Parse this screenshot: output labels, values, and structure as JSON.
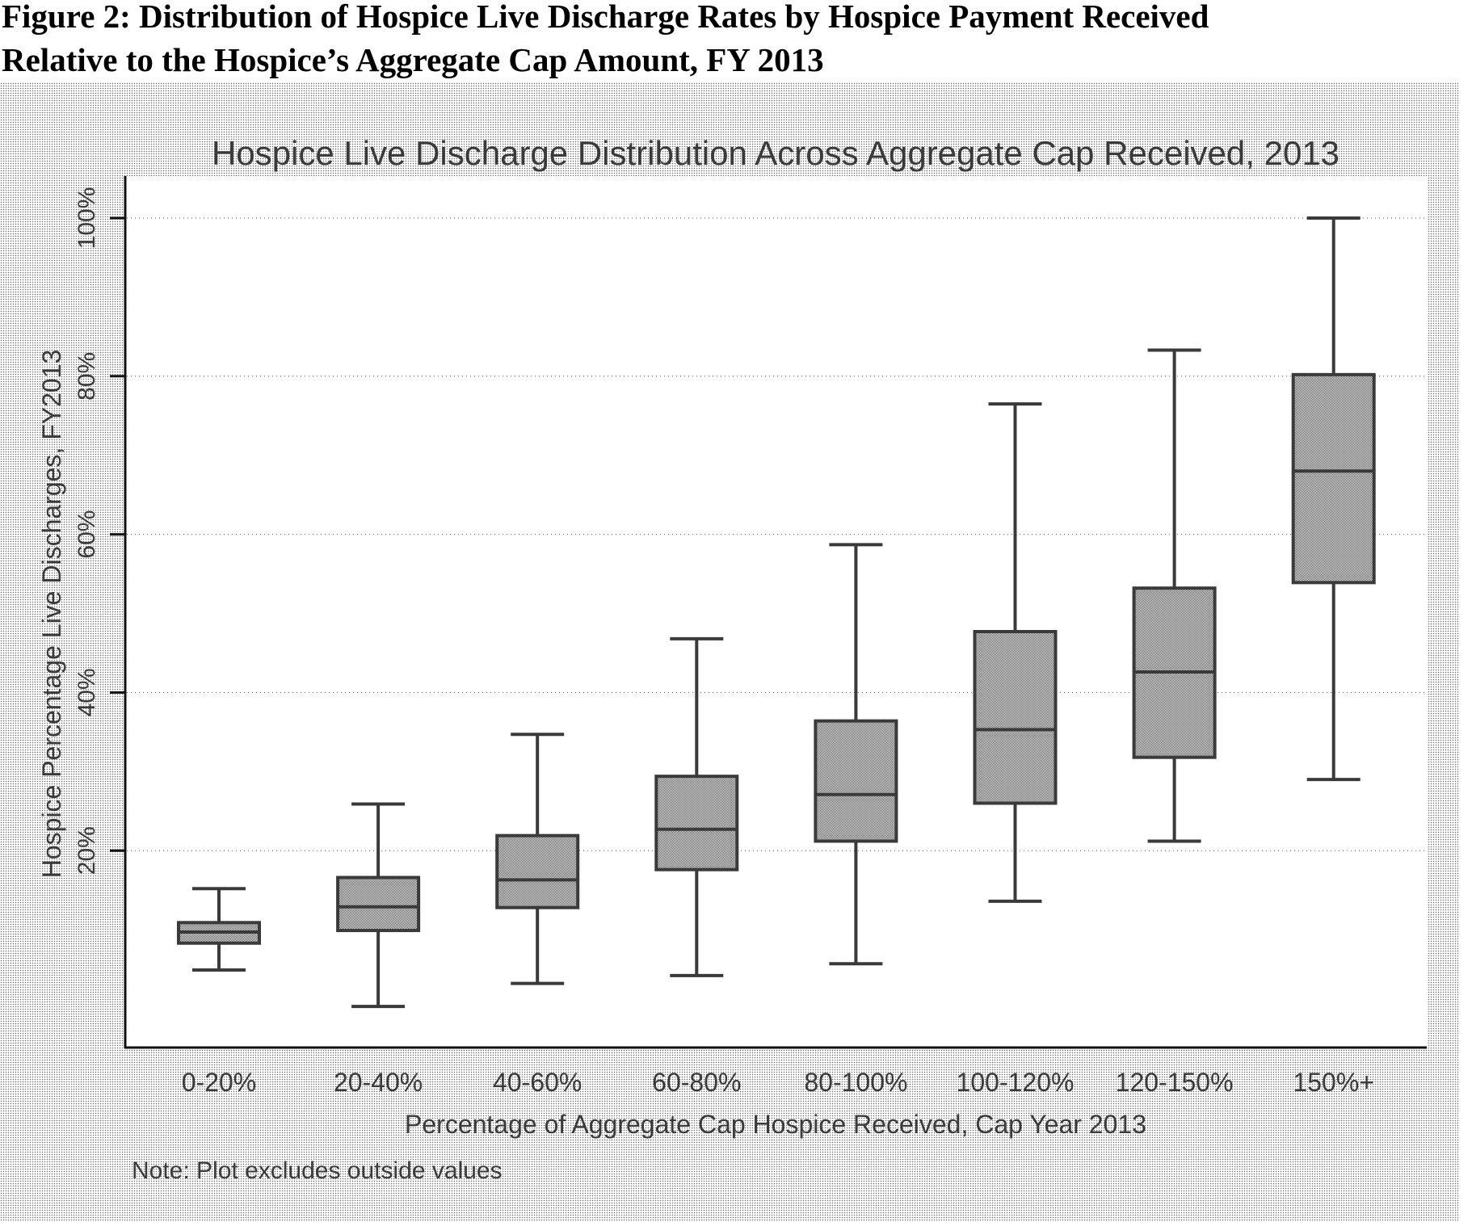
{
  "figure": {
    "caption_line1": "Figure 2: Distribution of Hospice Live Discharge Rates by Hospice Payment Received",
    "caption_line2": "Relative to the Hospice’s Aggregate Cap Amount, FY 2013"
  },
  "chart_data": {
    "type": "box",
    "title": "Hospice Live Discharge Distribution Across Aggregate Cap Received, 2013",
    "xlabel": "Percentage of Aggregate Cap Hospice Received, Cap Year 2013",
    "ylabel": "Hospice Percentage Live Discharges, FY2013",
    "note": "Note: Plot excludes outside values",
    "ylim": [
      0,
      100
    ],
    "yticks": [
      20,
      40,
      60,
      80,
      100
    ],
    "ytick_labels": [
      "20%",
      "40%",
      "60%",
      "80%",
      "100%"
    ],
    "grid": true,
    "categories": [
      "0-20%",
      "20-40%",
      "40-60%",
      "60-80%",
      "80-100%",
      "100-120%",
      "120-150%",
      "150%+"
    ],
    "series": [
      {
        "name": "0-20%",
        "lower_whisker": 4.9,
        "q1": 8.3,
        "median": 9.7,
        "q3": 10.9,
        "upper_whisker": 15.2
      },
      {
        "name": "20-40%",
        "lower_whisker": 0.3,
        "q1": 9.9,
        "median": 12.9,
        "q3": 16.6,
        "upper_whisker": 25.9
      },
      {
        "name": "40-60%",
        "lower_whisker": 3.2,
        "q1": 12.8,
        "median": 16.3,
        "q3": 21.9,
        "upper_whisker": 34.7
      },
      {
        "name": "60-80%",
        "lower_whisker": 4.2,
        "q1": 17.6,
        "median": 22.7,
        "q3": 29.4,
        "upper_whisker": 46.8
      },
      {
        "name": "80-100%",
        "lower_whisker": 5.7,
        "q1": 21.2,
        "median": 27.1,
        "q3": 36.4,
        "upper_whisker": 58.7
      },
      {
        "name": "100-120%",
        "lower_whisker": 13.6,
        "q1": 26.0,
        "median": 35.3,
        "q3": 47.7,
        "upper_whisker": 76.5
      },
      {
        "name": "120-150%",
        "lower_whisker": 21.2,
        "q1": 31.8,
        "median": 42.6,
        "q3": 53.2,
        "upper_whisker": 83.3
      },
      {
        "name": "150%+",
        "lower_whisker": 29.0,
        "q1": 53.9,
        "median": 68.0,
        "q3": 80.2,
        "upper_whisker": 100.0
      }
    ],
    "colors": {
      "box_fill": "#8a8a8a",
      "box_stroke": "#3a3a3a",
      "axis": "#111111",
      "grid": "#555555"
    }
  }
}
